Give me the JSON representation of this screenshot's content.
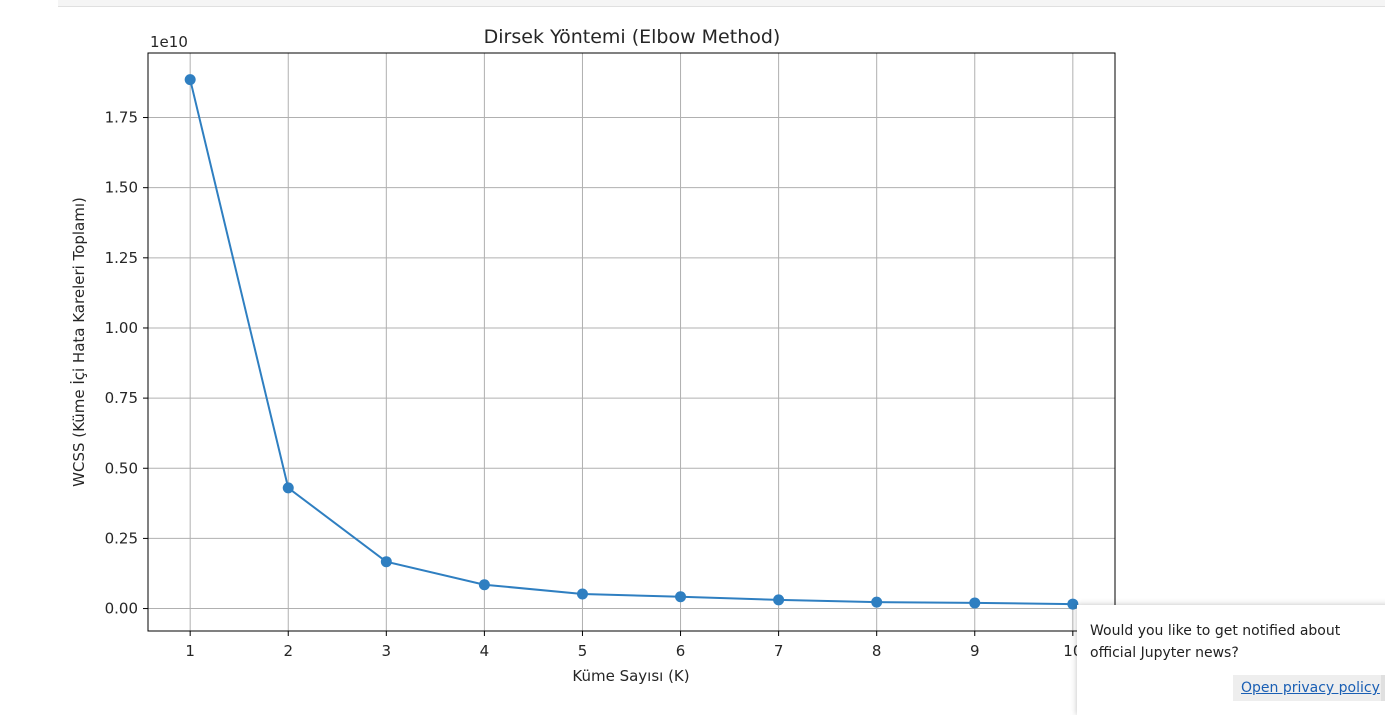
{
  "chart_data": {
    "type": "line",
    "title": "Dirsek Yöntemi (Elbow Method)",
    "xlabel": "Küme Sayısı (K)",
    "ylabel": "WCSS (Küme İçi Hata Kareleri Toplamı)",
    "y_offset_label": "1e10",
    "x": [
      1,
      2,
      3,
      4,
      5,
      6,
      7,
      8,
      9,
      10
    ],
    "x_tick_labels": [
      "1",
      "2",
      "3",
      "4",
      "5",
      "6",
      "7",
      "8",
      "9",
      "10"
    ],
    "series": [
      {
        "values": [
          1.885,
          0.43,
          0.167,
          0.085,
          0.052,
          0.042,
          0.031,
          0.023,
          0.02,
          0.016
        ],
        "color": "#2f7fc1",
        "marker": "circle"
      }
    ],
    "xlim": [
      0.57,
      10.43
    ],
    "ylim": [
      -0.08,
      1.98
    ],
    "y_ticks": [
      0.0,
      0.25,
      0.5,
      0.75,
      1.0,
      1.25,
      1.5,
      1.75
    ],
    "y_tick_labels": [
      "0.00",
      "0.25",
      "0.50",
      "0.75",
      "1.00",
      "1.25",
      "1.50",
      "1.75"
    ],
    "grid": true
  },
  "notification": {
    "message": "Would you like to get notified about official Jupyter news?",
    "privacy_link": "Open privacy policy"
  }
}
